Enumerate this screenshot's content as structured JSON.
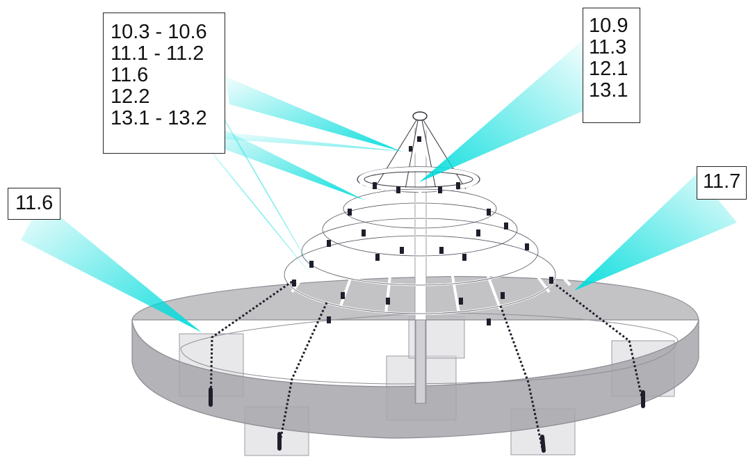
{
  "callouts": {
    "left_top": [
      "10.3 - 10.6",
      "11.1 - 11.2",
      "11.6",
      "12.2",
      "13.1 - 13.2"
    ],
    "right_top": [
      "10.9",
      "11.3",
      "12.1",
      "13.1"
    ],
    "left": [
      "11.6"
    ],
    "right": [
      "11.7"
    ]
  },
  "colors": {
    "beam": "#00e5e5",
    "platform": "#b4b4b8",
    "rope": "#ffffff",
    "clamp": "#1e1e2c"
  }
}
